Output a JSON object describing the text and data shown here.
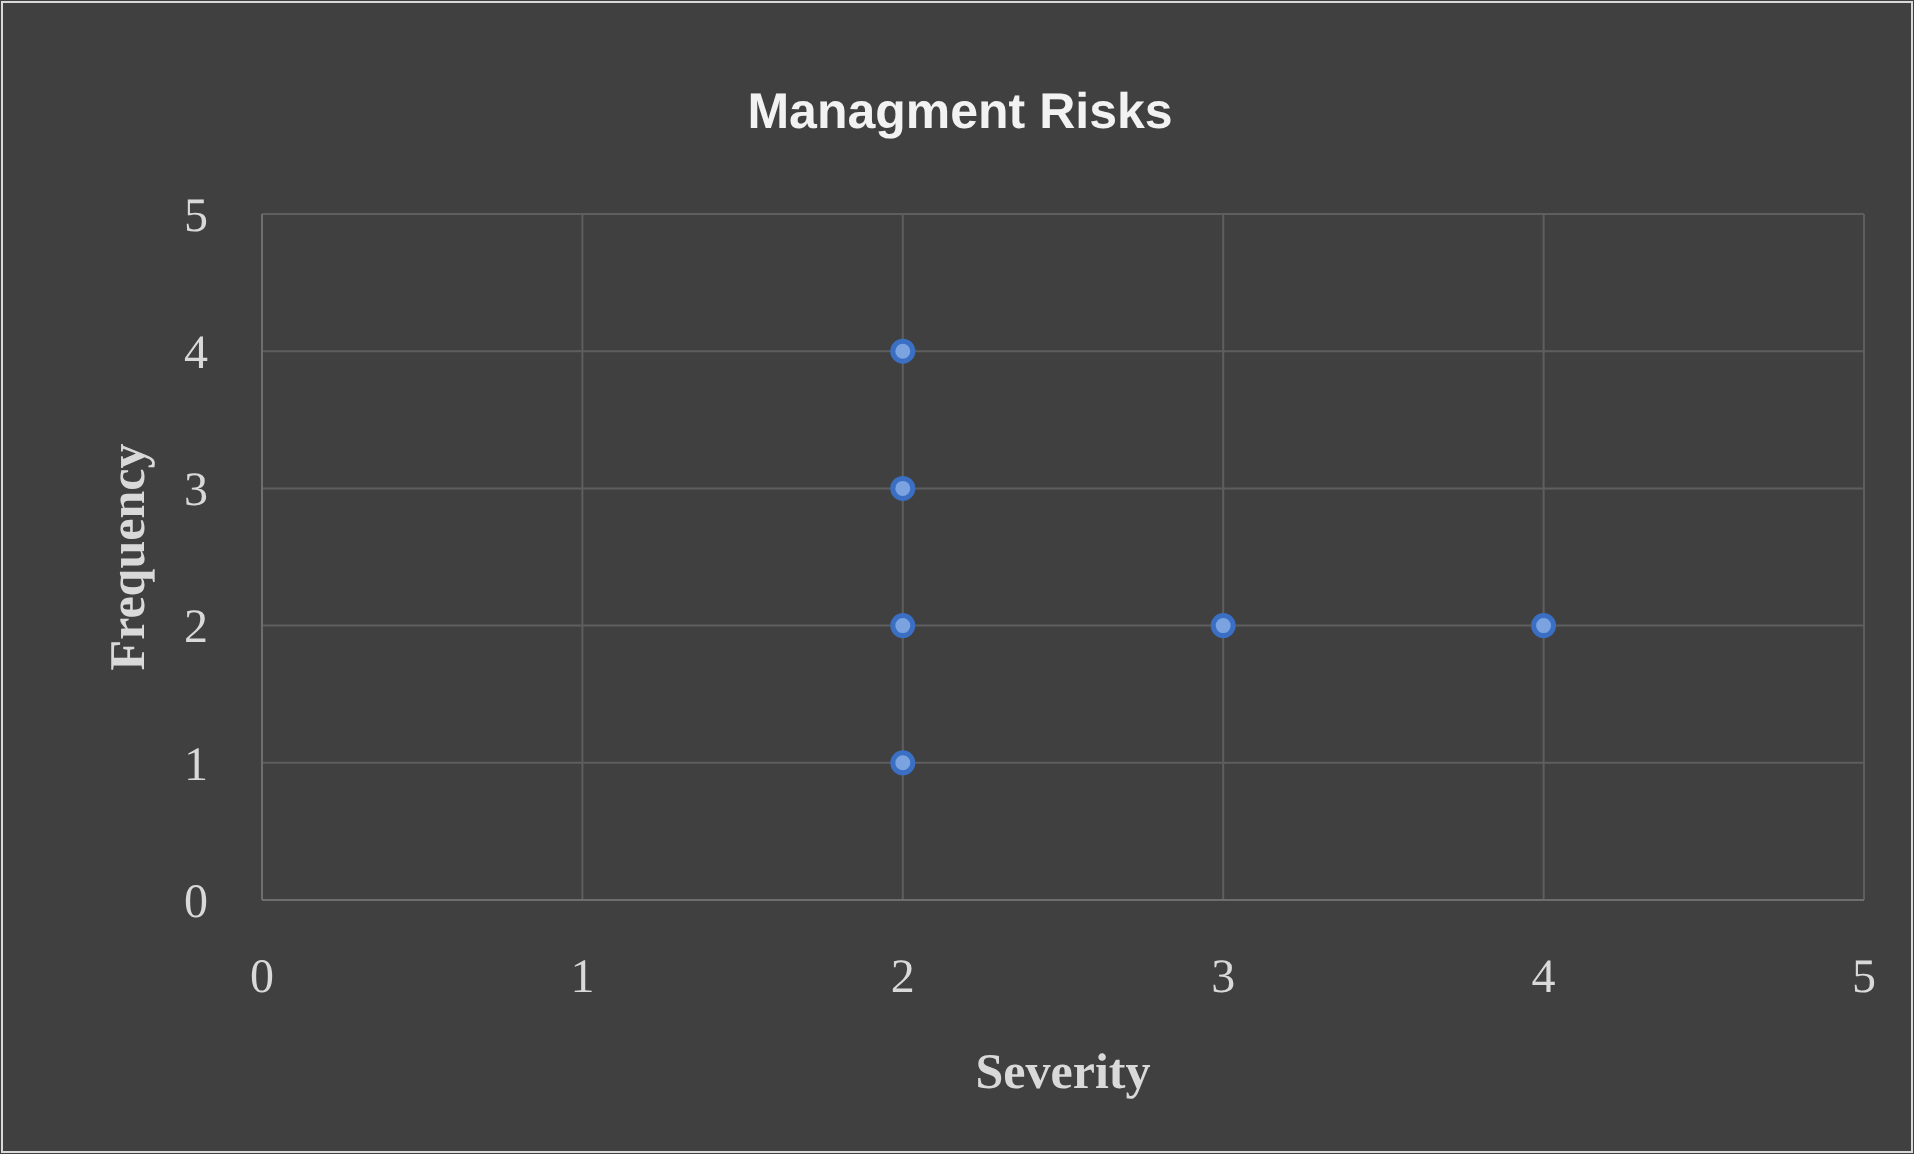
{
  "chart_data": {
    "type": "scatter",
    "title": "Managment Risks",
    "xlabel": "Severity",
    "ylabel": "Frequency",
    "x": [
      2,
      2,
      2,
      2,
      3,
      4
    ],
    "series": [
      {
        "color": "#7aa3e0",
        "values": [
          4,
          3,
          2,
          1,
          2,
          2
        ]
      }
    ],
    "xlim": [
      0,
      5
    ],
    "ylim": [
      0,
      5
    ],
    "xticks": [
      0,
      1,
      2,
      3,
      4,
      5
    ],
    "yticks": [
      0,
      1,
      2,
      3,
      4,
      5
    ],
    "grid": true,
    "marker": "circle"
  }
}
